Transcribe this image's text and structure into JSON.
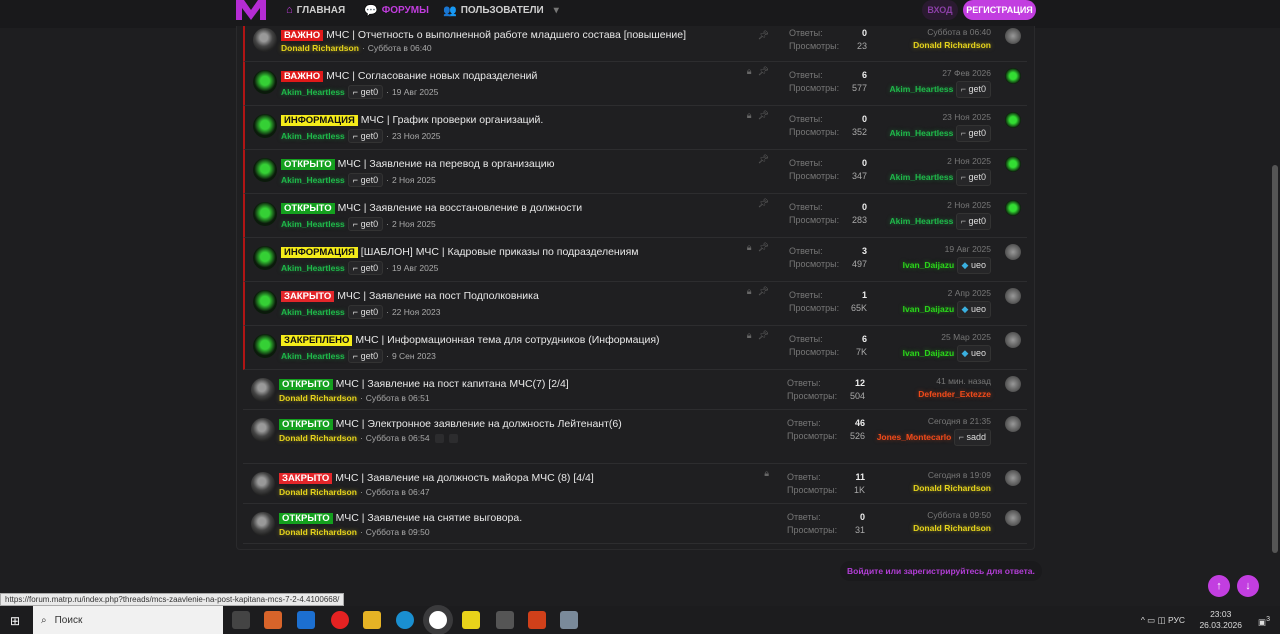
{
  "nav": {
    "items": [
      "ГЛАВНАЯ",
      "ФОРУМЫ",
      "ПОЛЬЗОВАТЕЛИ"
    ],
    "login": "ВХОД",
    "register": "РЕГИСТРАЦИЯ",
    "brand_color": "#c23ee0"
  },
  "labels": {
    "replies": "Ответы:",
    "views": "Просмотры:"
  },
  "threads": [
    {
      "sticky": true,
      "prefix": "ВАЖНО",
      "prefix_color": "#e01919",
      "prefix_text": "#ffffff",
      "title": "МЧС | Отчетность о выполненной работе младшего состава [повышение]",
      "author": "Donald Richardson",
      "author_color": "#e4d21c",
      "author_badge": "",
      "date": "Суббота в 06:40",
      "locked": false,
      "pinned": true,
      "replies": "0",
      "views": "23",
      "last_date": "Суббота в 06:40",
      "last_user": "Donald Richardson",
      "last_color": "#e4d21c",
      "last_badge": "",
      "avatar": "gray",
      "last_avatar": "gray"
    },
    {
      "sticky": true,
      "prefix": "ВАЖНО",
      "prefix_color": "#e01919",
      "prefix_text": "#ffffff",
      "title": "МЧС | Согласование новых подразделений",
      "author": "Akim_Heartless",
      "author_color": "#1fb84a",
      "author_badge": "get0",
      "date": "19 Авг 2025",
      "locked": true,
      "pinned": true,
      "replies": "6",
      "views": "577",
      "last_date": "27 Фев 2026",
      "last_user": "Akim_Heartless",
      "last_color": "#1fb84a",
      "last_badge": "get0",
      "avatar": "green",
      "last_avatar": "green"
    },
    {
      "sticky": true,
      "prefix": "ИНФОРМАЦИЯ",
      "prefix_color": "#f5ec1a",
      "prefix_text": "#111111",
      "title": "МЧС | График проверки организаций.",
      "author": "Akim_Heartless",
      "author_color": "#1fb84a",
      "author_badge": "get0",
      "date": "23 Ноя 2025",
      "locked": true,
      "pinned": true,
      "replies": "0",
      "views": "352",
      "last_date": "23 Ноя 2025",
      "last_user": "Akim_Heartless",
      "last_color": "#1fb84a",
      "last_badge": "get0",
      "avatar": "green",
      "last_avatar": "green"
    },
    {
      "sticky": true,
      "prefix": "ОТКРЫТО",
      "prefix_color": "#14a01e",
      "prefix_text": "#ffffff",
      "title": "МЧС | Заявление на перевод в организацию",
      "author": "Akim_Heartless",
      "author_color": "#1fb84a",
      "author_badge": "get0",
      "date": "2 Ноя 2025",
      "locked": false,
      "pinned": true,
      "replies": "0",
      "views": "347",
      "last_date": "2 Ноя 2025",
      "last_user": "Akim_Heartless",
      "last_color": "#1fb84a",
      "last_badge": "get0",
      "avatar": "green",
      "last_avatar": "green"
    },
    {
      "sticky": true,
      "prefix": "ОТКРЫТО",
      "prefix_color": "#14a01e",
      "prefix_text": "#ffffff",
      "title": "МЧС | Заявление на восстановление в должности",
      "author": "Akim_Heartless",
      "author_color": "#1fb84a",
      "author_badge": "get0",
      "date": "2 Ноя 2025",
      "locked": false,
      "pinned": true,
      "replies": "0",
      "views": "283",
      "last_date": "2 Ноя 2025",
      "last_user": "Akim_Heartless",
      "last_color": "#1fb84a",
      "last_badge": "get0",
      "avatar": "green",
      "last_avatar": "green"
    },
    {
      "sticky": true,
      "prefix": "ИНФОРМАЦИЯ",
      "prefix_color": "#f5ec1a",
      "prefix_text": "#111111",
      "title": "[ШАБЛОН] МЧС | Кадровые приказы по подразделениям",
      "author": "Akim_Heartless",
      "author_color": "#1fb84a",
      "author_badge": "get0",
      "date": "19 Авг 2025",
      "locked": true,
      "pinned": true,
      "replies": "3",
      "views": "497",
      "last_date": "19 Авг 2025",
      "last_user": "Ivan_Daijazu",
      "last_color": "#2ad61a",
      "last_badge": "ueo",
      "avatar": "green",
      "last_avatar": "gray"
    },
    {
      "sticky": true,
      "prefix": "ЗАКРЫТО",
      "prefix_color": "#e3262a",
      "prefix_text": "#ffffff",
      "title": "МЧС | Заявление на пост Подполковника",
      "author": "Akim_Heartless",
      "author_color": "#1fb84a",
      "author_badge": "get0",
      "date": "22 Ноя 2023",
      "locked": true,
      "pinned": true,
      "replies": "1",
      "views": "65K",
      "last_date": "2 Апр 2025",
      "last_user": "Ivan_Daijazu",
      "last_color": "#2ad61a",
      "last_badge": "ueo",
      "avatar": "green",
      "last_avatar": "gray"
    },
    {
      "sticky": true,
      "prefix": "ЗАКРЕПЛЕНО",
      "prefix_color": "#f5ec1a",
      "prefix_text": "#111111",
      "title": "МЧС | Информационная тема для сотрудников (Информация)",
      "author": "Akim_Heartless",
      "author_color": "#1fb84a",
      "author_badge": "get0",
      "date": "9 Сен 2023",
      "locked": true,
      "pinned": true,
      "replies": "6",
      "views": "7K",
      "last_date": "25 Мар 2025",
      "last_user": "Ivan_Daijazu",
      "last_color": "#2ad61a",
      "last_badge": "ueo",
      "avatar": "green",
      "last_avatar": "gray"
    },
    {
      "sticky": false,
      "prefix": "ОТКРЫТО",
      "prefix_color": "#14a01e",
      "prefix_text": "#ffffff",
      "title": "МЧС | Заявление на пост капитана МЧС(7) [2/4]",
      "author": "Donald Richardson",
      "author_color": "#e4d21c",
      "author_badge": "",
      "date": "Суббота в 06:51",
      "locked": false,
      "pinned": false,
      "replies": "12",
      "views": "504",
      "last_date": "41 мин. назад",
      "last_user": "Defender_Extezze",
      "last_color": "#f04a1a",
      "last_badge": "",
      "avatar": "gray",
      "last_avatar": "gray"
    },
    {
      "sticky": false,
      "prefix": "ОТКРЫТО",
      "prefix_color": "#14a01e",
      "prefix_text": "#ffffff",
      "title": "МЧС | Электронное заявление на должность Лейтенант(6)",
      "author": "Donald Richardson",
      "author_color": "#e4d21c",
      "author_badge": "",
      "date": "Суббота в 06:54",
      "pages": [
        "2",
        "3"
      ],
      "locked": false,
      "pinned": false,
      "replies": "46",
      "views": "526",
      "last_date": "Сегодня в 21:35",
      "last_user": "Jones_Montecarlo",
      "last_color": "#f04a1a",
      "last_badge": "sadd",
      "avatar": "gray",
      "last_avatar": "gray"
    },
    {
      "sticky": false,
      "prefix": "ЗАКРЫТО",
      "prefix_color": "#e3262a",
      "prefix_text": "#ffffff",
      "title": "МЧС | Заявление на должность майора МЧС (8) [4/4]",
      "author": "Donald Richardson",
      "author_color": "#e4d21c",
      "author_badge": "",
      "date": "Суббота в 06:47",
      "locked": true,
      "pinned": false,
      "replies": "11",
      "views": "1K",
      "last_date": "Сегодня в 19:09",
      "last_user": "Donald Richardson",
      "last_color": "#e4d21c",
      "last_badge": "",
      "avatar": "gray",
      "last_avatar": "gray"
    },
    {
      "sticky": false,
      "prefix": "ОТКРЫТО",
      "prefix_color": "#14a01e",
      "prefix_text": "#ffffff",
      "title": "МЧС | Заявление на снятие выговора.",
      "author": "Donald Richardson",
      "author_color": "#e4d21c",
      "author_badge": "",
      "date": "Суббота в 09:50",
      "locked": false,
      "pinned": false,
      "replies": "0",
      "views": "31",
      "last_date": "Суббота в 09:50",
      "last_user": "Donald Richardson",
      "last_color": "#e4d21c",
      "last_badge": "",
      "avatar": "gray",
      "last_avatar": "gray"
    }
  ],
  "reply_hint": "Войдите или зарегистрируйтесь для ответа.",
  "status_url": "https://forum.matrp.ru/index.php?threads/mcs-zaavlenie-na-post-kapitana-mcs-7-2-4.4100668/",
  "taskbar": {
    "search": "Поиск",
    "lang": "РУС",
    "time": "23:03",
    "date": "26.03.2026",
    "notifications": "3"
  }
}
